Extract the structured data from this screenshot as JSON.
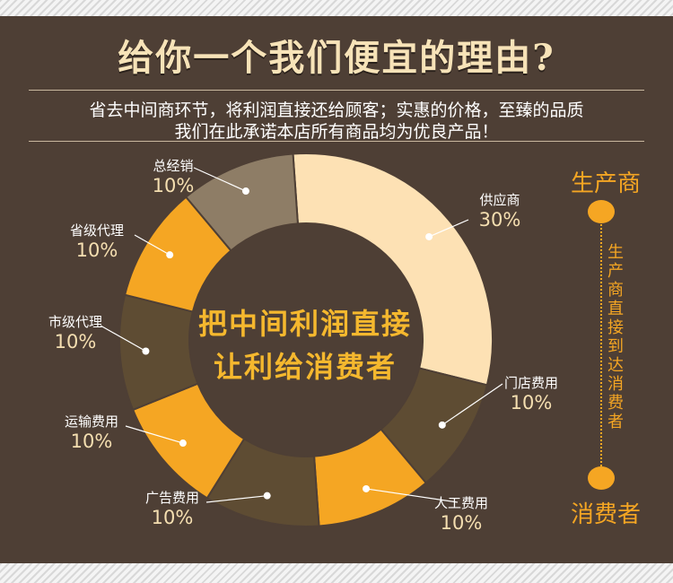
{
  "title": "给你一个我们便宜的理由?",
  "subtitle_line1": "省去中间商环节，将利润直接还给顾客；实惠的价格，至臻的品质",
  "subtitle_line2": "我们在此承诺本店所有商品均为优良产品！",
  "center_line1": "把中间利润直接",
  "center_line2": "让利给消费者",
  "producer": "生产商",
  "consumer": "消费者",
  "flow_text": "生产商直接到达消费者",
  "colors": {
    "background": "#4e3f35",
    "cream": "#fde1b4",
    "orange": "#f5a623",
    "dark": "#5e4c33",
    "gray": "#8e7d66",
    "accent": "#f5a623"
  },
  "chart_data": {
    "type": "pie",
    "donut": true,
    "title": "",
    "slices": [
      {
        "label": "供应商",
        "value": 30,
        "pct_text": "30%",
        "color": "#fde1b4"
      },
      {
        "label": "门店费用",
        "value": 10,
        "pct_text": "10%",
        "color": "#5e4c33"
      },
      {
        "label": "人工费用",
        "value": 10,
        "pct_text": "10%",
        "color": "#f5a623"
      },
      {
        "label": "广告费用",
        "value": 10,
        "pct_text": "10%",
        "color": "#5e4c33"
      },
      {
        "label": "运输费用",
        "value": 10,
        "pct_text": "10%",
        "color": "#f5a623"
      },
      {
        "label": "市级代理",
        "value": 10,
        "pct_text": "10%",
        "color": "#5e4c33"
      },
      {
        "label": "省级代理",
        "value": 10,
        "pct_text": "10%",
        "color": "#f5a623"
      },
      {
        "label": "总经销",
        "value": 10,
        "pct_text": "10%",
        "color": "#8e7d66"
      }
    ]
  }
}
